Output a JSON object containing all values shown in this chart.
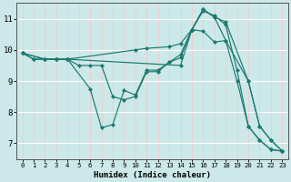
{
  "xlabel": "Humidex (Indice chaleur)",
  "bg_color": "#cce8e8",
  "grid_color": "#ffffff",
  "line_color": "#1a7a6e",
  "marker_color": "#1a7a6e",
  "xlim": [
    -0.5,
    23.5
  ],
  "ylim": [
    6.5,
    11.5
  ],
  "yticks": [
    7,
    8,
    9,
    10,
    11
  ],
  "xticks": [
    0,
    1,
    2,
    3,
    4,
    5,
    6,
    7,
    8,
    9,
    10,
    11,
    12,
    13,
    14,
    15,
    16,
    17,
    18,
    19,
    20,
    21,
    22,
    23
  ],
  "lines": [
    {
      "x": [
        0,
        1,
        2,
        3,
        4,
        5,
        6,
        7,
        8,
        9,
        10,
        11,
        12,
        13,
        14,
        15,
        16,
        17,
        18,
        19,
        20,
        21,
        22,
        23
      ],
      "y": [
        9.9,
        9.7,
        9.7,
        9.7,
        9.7,
        9.5,
        9.5,
        9.5,
        8.5,
        8.4,
        8.5,
        9.3,
        9.3,
        9.6,
        9.75,
        10.65,
        10.6,
        10.25,
        10.3,
        9.0,
        7.55,
        7.1,
        6.8,
        6.75
      ]
    },
    {
      "x": [
        0,
        1,
        2,
        3,
        4,
        6,
        7,
        8,
        9,
        10,
        11,
        12,
        13,
        14,
        15,
        16,
        17,
        18,
        19,
        20,
        21,
        22,
        23
      ],
      "y": [
        9.9,
        9.7,
        9.7,
        9.7,
        9.7,
        8.75,
        7.5,
        7.6,
        8.7,
        8.55,
        9.35,
        9.35,
        9.6,
        9.85,
        10.65,
        11.25,
        11.1,
        10.8,
        9.35,
        7.55,
        7.1,
        6.8,
        6.75
      ]
    },
    {
      "x": [
        0,
        2,
        3,
        4,
        10,
        11,
        13,
        14,
        15,
        16,
        17,
        18,
        20,
        21,
        22,
        23
      ],
      "y": [
        9.9,
        9.7,
        9.7,
        9.7,
        10.0,
        10.05,
        10.1,
        10.2,
        10.65,
        11.3,
        11.05,
        10.9,
        9.0,
        7.55,
        7.1,
        6.75
      ]
    },
    {
      "x": [
        0,
        2,
        3,
        4,
        14,
        15,
        16,
        17,
        18,
        20,
        21,
        22,
        23
      ],
      "y": [
        9.9,
        9.7,
        9.7,
        9.7,
        9.5,
        10.65,
        11.3,
        11.05,
        10.3,
        9.0,
        7.55,
        7.1,
        6.75
      ]
    }
  ]
}
